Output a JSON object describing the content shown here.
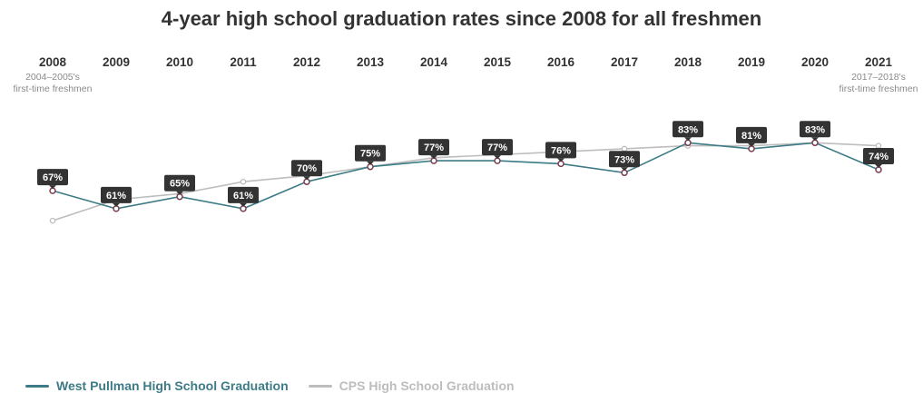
{
  "title": "4-year high school graduation rates since 2008 for all freshmen",
  "colors": {
    "primary": "#3d7b86",
    "secondary": "#bdbdbd",
    "label_bg": "#333333",
    "marker": "#7a3d4f"
  },
  "chart_data": {
    "type": "line",
    "title": "4-year high school graduation rates since 2008 for all freshmen",
    "categories": [
      "2008",
      "2009",
      "2010",
      "2011",
      "2012",
      "2013",
      "2014",
      "2015",
      "2016",
      "2017",
      "2018",
      "2019",
      "2020",
      "2021"
    ],
    "category_notes": {
      "first": [
        "2004–2005's",
        "first-time freshmen"
      ],
      "last": [
        "2017–2018's",
        "first-time freshmen"
      ]
    },
    "series": [
      {
        "name": "West Pullman High School Graduation",
        "values": [
          67,
          61,
          65,
          61,
          70,
          75,
          77,
          77,
          76,
          73,
          83,
          81,
          83,
          74
        ],
        "labels": [
          "67%",
          "61%",
          "65%",
          "61%",
          "70%",
          "75%",
          "77%",
          "77%",
          "76%",
          "73%",
          "83%",
          "81%",
          "83%",
          "74%"
        ]
      },
      {
        "name": "CPS High School Graduation",
        "values": [
          57,
          64,
          66,
          70,
          72,
          75,
          78,
          79,
          80,
          81,
          82,
          82,
          83,
          82
        ]
      }
    ],
    "ylim": [
      0,
      100
    ],
    "grid": false,
    "legend_position": "bottom-left"
  }
}
